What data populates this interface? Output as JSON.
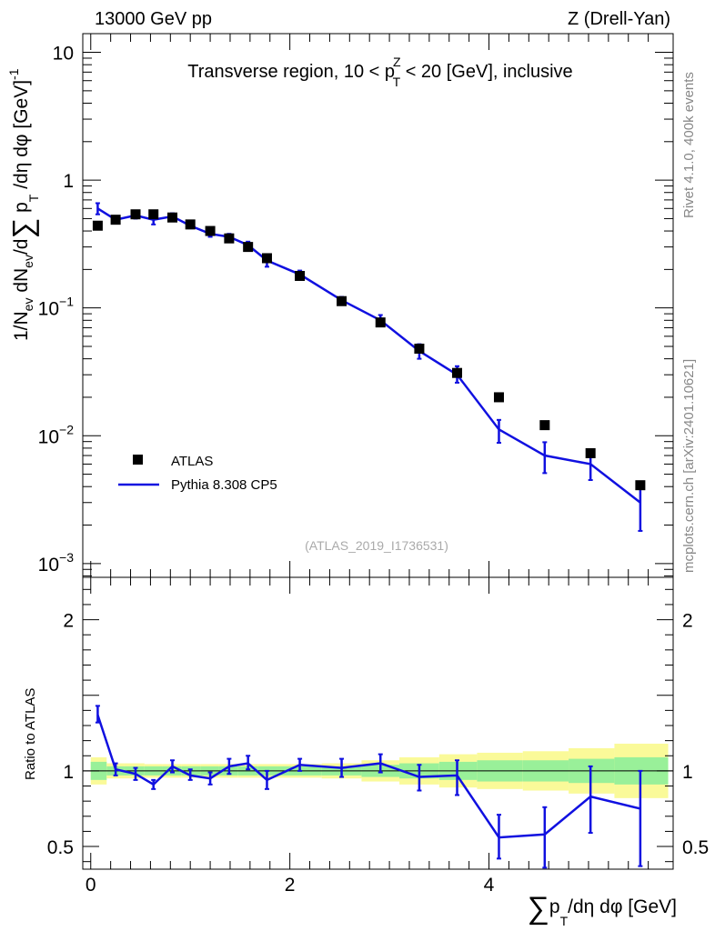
{
  "header": {
    "left": "13000 GeV pp",
    "right": "Z (Drell-Yan)"
  },
  "side_labels": {
    "rivet": "Rivet 4.1.0,  400k events",
    "mcplots": "mcplots.cern.ch [arXiv:2401.10621]"
  },
  "colors": {
    "mc": "#1010e0",
    "data": "#000000",
    "band_inner": "#99f099",
    "band_outer": "#fafa99"
  },
  "chart_data": [
    {
      "type": "scatter",
      "panel": "main",
      "title": "Transverse region, 10 < p_T^Z < 20 [GeV], inclusive",
      "title_parts": {
        "pre": "Transverse region, 10 < p",
        "sup": "Z",
        "sub": "T",
        "post": " < 20 [GeV], inclusive"
      },
      "ylabel": "1/N_ev dN_ev/d∑ p_T /dη dφ [GeV]^-1",
      "ylabel_parts": {
        "a": "1/N",
        "a_sub": "ev",
        "b": " dN",
        "b_sub": "ev",
        "c": "/d",
        "sigma": "∑",
        "d": " p",
        "d_sub": "T",
        "e": " /dη dφ  [GeV]",
        "e_sup": "-1"
      },
      "yscale": "log",
      "ylim": [
        0.00078,
        14
      ],
      "xlim": [
        -0.08,
        5.85
      ],
      "y_ticks": [
        {
          "v": 10,
          "label": "10"
        },
        {
          "v": 1,
          "label": "1"
        },
        {
          "v": 0.1,
          "base": "10",
          "exp": "−1"
        },
        {
          "v": 0.01,
          "base": "10",
          "exp": "−2"
        },
        {
          "v": 0.001,
          "base": "10",
          "exp": "−3"
        }
      ],
      "watermark": "(ATLAS_2019_I1736531)",
      "legend": {
        "placement": "bottom-left",
        "entries": [
          "ATLAS",
          "Pythia 8.308 CP5"
        ]
      },
      "series": [
        {
          "name": "ATLAS",
          "x": [
            0.07,
            0.25,
            0.45,
            0.63,
            0.82,
            1.0,
            1.2,
            1.39,
            1.58,
            1.77,
            2.1,
            2.52,
            2.91,
            3.3,
            3.68,
            4.1,
            4.56,
            5.02,
            5.52
          ],
          "y": [
            0.44,
            0.49,
            0.54,
            0.54,
            0.51,
            0.45,
            0.4,
            0.35,
            0.3,
            0.245,
            0.178,
            0.113,
            0.077,
            0.048,
            0.031,
            0.02,
            0.0121,
            0.0073,
            0.0041
          ]
        },
        {
          "name": "Pythia 8.308 CP5",
          "x": [
            0.07,
            0.25,
            0.45,
            0.63,
            0.82,
            1.0,
            1.2,
            1.39,
            1.58,
            1.77,
            2.1,
            2.52,
            2.91,
            3.3,
            3.68,
            4.1,
            4.56,
            5.02,
            5.52
          ],
          "y": [
            0.6,
            0.49,
            0.53,
            0.49,
            0.52,
            0.44,
            0.38,
            0.36,
            0.31,
            0.235,
            0.183,
            0.115,
            0.08,
            0.046,
            0.03,
            0.0112,
            0.007,
            0.006,
            0.003
          ],
          "err_lo": [
            0.54,
            0.46,
            0.5,
            0.45,
            0.49,
            0.42,
            0.36,
            0.34,
            0.29,
            0.21,
            0.17,
            0.108,
            0.072,
            0.04,
            0.026,
            0.0088,
            0.0051,
            0.0045,
            0.0018
          ],
          "err_hi": [
            0.66,
            0.52,
            0.56,
            0.53,
            0.55,
            0.47,
            0.41,
            0.38,
            0.33,
            0.26,
            0.196,
            0.122,
            0.088,
            0.052,
            0.035,
            0.0133,
            0.0089,
            0.0076,
            0.0042
          ]
        }
      ]
    },
    {
      "type": "line",
      "panel": "ratio",
      "ylabel": "Ratio to ATLAS",
      "xlabel_parts": {
        "sigma": "∑",
        "a": "p",
        "a_sub": "T",
        "b": "/dη dφ [GeV]"
      },
      "ylim": [
        0.35,
        2.28
      ],
      "xlim": [
        -0.08,
        5.85
      ],
      "y_ticks": [
        {
          "v": 0.5,
          "label": "0.5"
        },
        {
          "v": 1,
          "label": "1"
        },
        {
          "v": 2,
          "label": "2"
        }
      ],
      "x_ticks": [
        {
          "v": 0,
          "label": "0"
        },
        {
          "v": 2,
          "label": "2"
        },
        {
          "v": 4,
          "label": "4"
        }
      ],
      "bins": [
        0,
        0.16,
        0.34,
        0.54,
        0.72,
        0.91,
        1.1,
        1.29,
        1.48,
        1.68,
        1.88,
        2.32,
        2.72,
        3.1,
        3.5,
        3.88,
        4.34,
        4.8,
        5.26,
        5.8
      ],
      "band_inner": [
        0.06,
        0.03,
        0.03,
        0.03,
        0.03,
        0.03,
        0.03,
        0.03,
        0.03,
        0.03,
        0.03,
        0.03,
        0.04,
        0.05,
        0.06,
        0.07,
        0.07,
        0.08,
        0.09
      ],
      "band_outer": [
        0.09,
        0.05,
        0.05,
        0.045,
        0.045,
        0.045,
        0.045,
        0.045,
        0.045,
        0.045,
        0.045,
        0.05,
        0.07,
        0.09,
        0.11,
        0.12,
        0.13,
        0.15,
        0.18
      ],
      "series": [
        {
          "name": "Pythia 8.308 CP5 / ATLAS",
          "x": [
            0.07,
            0.25,
            0.45,
            0.63,
            0.82,
            1.0,
            1.2,
            1.39,
            1.58,
            1.77,
            2.1,
            2.52,
            2.91,
            3.3,
            3.68,
            4.1,
            4.56,
            5.02,
            5.52
          ],
          "y": [
            1.37,
            1.01,
            0.98,
            0.91,
            1.03,
            0.97,
            0.95,
            1.03,
            1.05,
            0.94,
            1.04,
            1.02,
            1.05,
            0.96,
            0.97,
            0.56,
            0.58,
            0.83,
            0.75
          ],
          "err_lo": [
            1.32,
            0.97,
            0.94,
            0.88,
            0.99,
            0.94,
            0.91,
            0.98,
            1.01,
            0.88,
            1.0,
            0.96,
            0.99,
            0.87,
            0.84,
            0.42,
            0.36,
            0.59,
            0.37
          ],
          "err_hi": [
            1.43,
            1.05,
            1.02,
            0.94,
            1.07,
            1.01,
            0.99,
            1.08,
            1.1,
            1.0,
            1.08,
            1.08,
            1.11,
            1.04,
            1.07,
            0.71,
            0.76,
            1.03,
            1.0
          ]
        }
      ]
    }
  ]
}
